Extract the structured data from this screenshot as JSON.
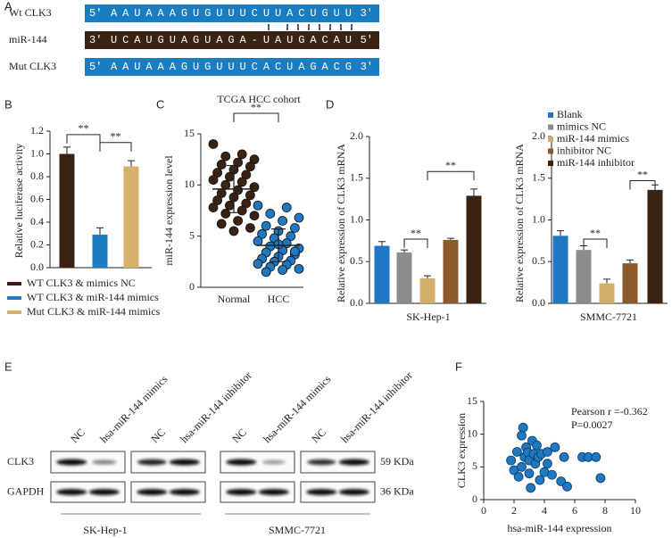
{
  "panel_labels": [
    "A",
    "B",
    "C",
    "D",
    "E",
    "F"
  ],
  "sequences": [
    {
      "label": "Wt CLK3",
      "start": "5'",
      "sequence": "AAUAAAGUGUUUCUUACUGUU",
      "end": "3'",
      "color": "#1a7cc1"
    },
    {
      "label": "miR-144",
      "start": "3'",
      "sequence": "UCAUGUAGUAGA-UAUGACAU",
      "end": "5'",
      "color": "#3b2314"
    },
    {
      "label": "Mut CLK3",
      "start": "5'",
      "sequence": "AAUAAAGUGUUUCACUAGACG",
      "end": "3'",
      "color": "#1a7cc1"
    }
  ],
  "chart_data": [
    {
      "type": "bar",
      "ylabel": "Relative  luciferase activity",
      "categories": [
        "WT CLK3 & mimics NC",
        "WT CLK3 & miR-144 mimics",
        "Mut CLK3 & miR-144 mimics"
      ],
      "colors": [
        "#3b2314",
        "#1a7cc1",
        "#d4b06a"
      ],
      "values": [
        1.0,
        0.29,
        0.89
      ],
      "errors": [
        0.06,
        0.06,
        0.05
      ],
      "ylim": [
        0,
        1.2
      ],
      "yticks": [
        {
          "value": 0,
          "label": "0.0"
        },
        0.2,
        0.4,
        0.6,
        0.8,
        {
          "value": 1,
          "label": "1.0"
        },
        1.2
      ],
      "annotation": "**"
    },
    {
      "type": "strip",
      "title": "TCGA HCC cohort",
      "ylabel": "miR-144 expression level",
      "categories": [
        "Normal",
        "HCC"
      ],
      "colors": [
        "#3b2314",
        "#1f78c1"
      ],
      "values": [
        [
          14,
          13,
          12.8,
          12.5,
          12.2,
          12,
          11.8,
          11.5,
          11.2,
          11,
          10.8,
          10.5,
          10.3,
          10,
          9.8,
          9.5,
          9.2,
          9,
          8.8,
          8.5,
          8.2,
          8,
          7.8,
          7.5,
          7.2,
          7,
          6.5,
          6.2,
          5.8,
          5.5
        ],
        [
          8,
          7.8,
          7.2,
          6.8,
          6.5,
          6,
          5.8,
          5.5,
          5.2,
          5,
          4.8,
          4.5,
          4.3,
          4,
          3.8,
          3.6,
          3.4,
          3.2,
          3,
          2.8,
          2.6,
          2.5,
          2.3,
          2.2,
          2,
          1.8,
          1.7,
          1.5,
          3.5,
          4.2
        ]
      ],
      "means": [
        9.6,
        4.1
      ],
      "sds": [
        2.3,
        1.6
      ],
      "ylim": [
        0,
        15
      ],
      "yticks": [
        0,
        5,
        10,
        15
      ],
      "annotation": "**"
    },
    {
      "type": "grouped-bar",
      "ylabel": "Relative expression of  CLK3 mRNA",
      "categories": [
        "Blank",
        "mimics NC",
        "miR-144 mimics",
        "inhibitor NC",
        "miR-144 inhibitor"
      ],
      "colors": [
        "#1f78c1",
        "#8c8c8c",
        "#d2b06b",
        "#8b5a2b",
        "#3b2314"
      ],
      "groups": [
        {
          "label": "SK-Hep-1",
          "values": [
            0.69,
            0.61,
            0.3,
            0.76,
            1.29
          ],
          "errors": [
            0.05,
            0.03,
            0.03,
            0.02,
            0.08
          ]
        },
        {
          "label": "SMMC-7721",
          "values": [
            0.81,
            0.64,
            0.24,
            0.48,
            1.36
          ],
          "errors": [
            0.06,
            0.05,
            0.05,
            0.04,
            0.06
          ]
        }
      ],
      "ylim": [
        0,
        2
      ],
      "yticks": [
        {
          "value": 0,
          "label": "0.0"
        },
        0.5,
        {
          "value": 1,
          "label": "1.0"
        },
        1.5,
        {
          "value": 2,
          "label": "2.0"
        }
      ],
      "annotation": "**"
    },
    {
      "type": "scatter",
      "xlabel": "hsa-miR-144 expression",
      "ylabel": "CLK3 expression",
      "color": "#1f78c1",
      "x": [
        1.8,
        2,
        2.2,
        2.3,
        2.5,
        2.5,
        2.6,
        2.7,
        2.8,
        2.9,
        3,
        3,
        3.1,
        3.2,
        3.3,
        3.4,
        3.5,
        3.6,
        3.7,
        3.8,
        4,
        4.2,
        4.2,
        4.5,
        4.7,
        5.1,
        5.3,
        5.5,
        6.5,
        6.9,
        7.4,
        7.7
      ],
      "y": [
        6,
        4.5,
        7.3,
        3.5,
        5,
        9.8,
        11,
        6.5,
        8,
        7.2,
        6,
        4,
        1.8,
        9,
        7,
        5.5,
        8.3,
        6.5,
        3,
        7,
        4.2,
        7.3,
        5.5,
        3.8,
        8,
        2.8,
        6.5,
        2,
        6.5,
        6.5,
        6.5,
        3.3
      ],
      "xlim": [
        0,
        10
      ],
      "xticks": [
        0,
        2,
        4,
        6,
        8,
        10
      ],
      "ylim": [
        0,
        15
      ],
      "yticks": [
        0,
        5,
        10,
        15
      ],
      "annotations": [
        "Pearson r =-0.362",
        "P=0.0027"
      ]
    }
  ],
  "blot": {
    "columns": [
      "NC",
      "hsa-miR-144 mimics",
      "NC",
      "hsa-miR-144 inhibitor",
      "NC",
      "hsa-miR-144 mimics",
      "NC",
      "hsa-miR-144 inhibitor"
    ],
    "rows": [
      {
        "label": "CLK3",
        "size": "59 KDa"
      },
      {
        "label": "GAPDH",
        "size": "36 KDa"
      }
    ],
    "cell_lines": [
      "SK-Hep-1",
      "SMMC-7721"
    ]
  }
}
